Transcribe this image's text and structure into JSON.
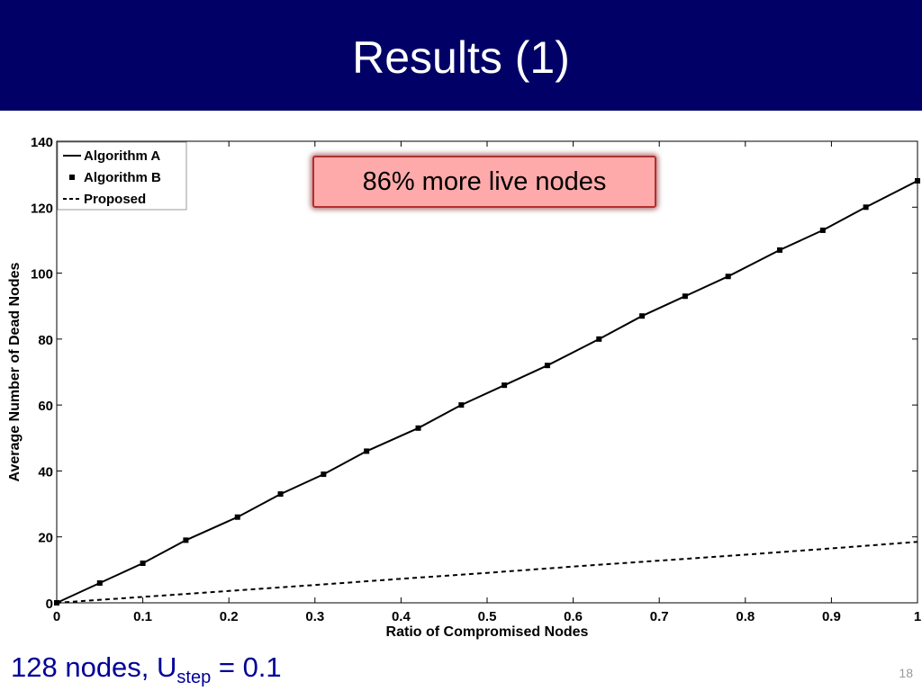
{
  "slide": {
    "title": "Results (1)",
    "callout": "86% more live nodes",
    "caption": {
      "prefix": "128 nodes, U",
      "subscript": "step",
      "suffix": " = 0.1"
    },
    "page_number": "18",
    "colors": {
      "title_bar": "#000066",
      "caption": "#000099",
      "callout_fill": "#ffaaaa",
      "callout_border": "#b03030"
    }
  },
  "chart_data": {
    "type": "line",
    "xlabel": "Ratio of Compromised Nodes",
    "ylabel": "Average Number of Dead Nodes",
    "xlim": [
      0,
      1
    ],
    "ylim": [
      0,
      140
    ],
    "xticks": [
      "0",
      "0.1",
      "0.2",
      "0.3",
      "0.4",
      "0.5",
      "0.6",
      "0.7",
      "0.8",
      "0.9",
      "1"
    ],
    "yticks": [
      "0",
      "20",
      "40",
      "60",
      "80",
      "100",
      "120",
      "140"
    ],
    "legend_position": "top-left",
    "grid": false,
    "series": [
      {
        "name": "Algorithm A",
        "style": "solid",
        "x": [
          0,
          0.05,
          0.1,
          0.15,
          0.21,
          0.26,
          0.31,
          0.36,
          0.42,
          0.47,
          0.52,
          0.57,
          0.63,
          0.68,
          0.73,
          0.78,
          0.84,
          0.89,
          0.94,
          1.0
        ],
        "values": [
          0,
          6,
          12,
          19,
          26,
          33,
          39,
          46,
          53,
          60,
          66,
          72,
          80,
          87,
          93,
          99,
          107,
          113,
          120,
          128
        ]
      },
      {
        "name": "Algorithm B",
        "style": "square-markers",
        "x": [
          0,
          0.05,
          0.1,
          0.15,
          0.21,
          0.26,
          0.31,
          0.36,
          0.42,
          0.47,
          0.52,
          0.57,
          0.63,
          0.68,
          0.73,
          0.78,
          0.84,
          0.89,
          0.94,
          1.0
        ],
        "values": [
          0,
          6,
          12,
          19,
          26,
          33,
          39,
          46,
          53,
          60,
          66,
          72,
          80,
          87,
          93,
          99,
          107,
          113,
          120,
          128
        ]
      },
      {
        "name": "Proposed",
        "style": "dashed",
        "x": [
          0,
          0.1,
          0.2,
          0.3,
          0.4,
          0.5,
          0.6,
          0.7,
          0.8,
          0.9,
          1.0
        ],
        "values": [
          0,
          1.8,
          3.6,
          5.4,
          7.3,
          9.1,
          11.0,
          12.8,
          14.6,
          16.5,
          18.5
        ]
      }
    ]
  }
}
